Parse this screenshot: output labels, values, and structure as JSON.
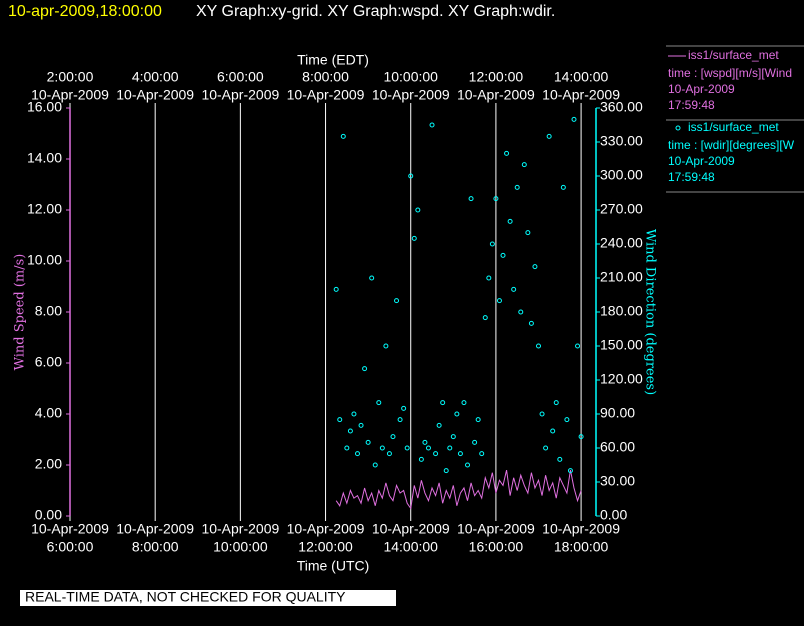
{
  "chart_data": {
    "type": "line",
    "timestamp": "10-apr-2009,18:00:00",
    "title": "XY Graph:xy-grid.  XY Graph:wspd.  XY Graph:wdir.",
    "xlabel": "Time (UTC)",
    "x2label": "Time (EDT)",
    "ylabel": "Wind Speed (m/s)",
    "y2label": "Wind Direction (degrees)",
    "note": "REAL-TIME DATA, NOT CHECKED FOR QUALITY",
    "grid": true,
    "xlim": [
      "06:00:00",
      "18:21:00"
    ],
    "xticks": [
      {
        "value": "06:00:00",
        "label": [
          "10-Apr-2009",
          "6:00:00"
        ]
      },
      {
        "value": "08:00:00",
        "label": [
          "10-Apr-2009",
          "8:00:00"
        ]
      },
      {
        "value": "10:00:00",
        "label": [
          "10-Apr-2009",
          "10:00:00"
        ]
      },
      {
        "value": "12:00:00",
        "label": [
          "10-Apr-2009",
          "12:00:00"
        ]
      },
      {
        "value": "14:00:00",
        "label": [
          "10-Apr-2009",
          "14:00:00"
        ]
      },
      {
        "value": "16:00:00",
        "label": [
          "10-Apr-2009",
          "16:00:00"
        ]
      },
      {
        "value": "18:00:00",
        "label": [
          "10-Apr-2009",
          "18:00:00"
        ]
      }
    ],
    "x2ticks": [
      {
        "value": "06:00:00",
        "label": [
          "2:00:00",
          "10-Apr-2009"
        ]
      },
      {
        "value": "08:00:00",
        "label": [
          "4:00:00",
          "10-Apr-2009"
        ]
      },
      {
        "value": "10:00:00",
        "label": [
          "6:00:00",
          "10-Apr-2009"
        ]
      },
      {
        "value": "12:00:00",
        "label": [
          "8:00:00",
          "10-Apr-2009"
        ]
      },
      {
        "value": "14:00:00",
        "label": [
          "10:00:00",
          "10-Apr-2009"
        ]
      },
      {
        "value": "16:00:00",
        "label": [
          "12:00:00",
          "10-Apr-2009"
        ]
      },
      {
        "value": "18:00:00",
        "label": [
          "14:00:00",
          "10-Apr-2009"
        ]
      }
    ],
    "ylim": [
      0,
      16
    ],
    "yticks": [
      {
        "value": 0,
        "label": "0.00"
      },
      {
        "value": 2,
        "label": "2.00"
      },
      {
        "value": 4,
        "label": "4.00"
      },
      {
        "value": 6,
        "label": "6.00"
      },
      {
        "value": 8,
        "label": "8.00"
      },
      {
        "value": 10,
        "label": "10.00"
      },
      {
        "value": 12,
        "label": "12.00"
      },
      {
        "value": 14,
        "label": "14.00"
      },
      {
        "value": 16,
        "label": "16.00"
      }
    ],
    "y2lim": [
      0,
      360
    ],
    "y2ticks": [
      {
        "value": 0,
        "label": "0.00"
      },
      {
        "value": 30,
        "label": "30.00"
      },
      {
        "value": 60,
        "label": "60.00"
      },
      {
        "value": 90,
        "label": "90.00"
      },
      {
        "value": 120,
        "label": "120.00"
      },
      {
        "value": 150,
        "label": "150.00"
      },
      {
        "value": 180,
        "label": "180.00"
      },
      {
        "value": 210,
        "label": "210.00"
      },
      {
        "value": 240,
        "label": "240.00"
      },
      {
        "value": 270,
        "label": "270.00"
      },
      {
        "value": 300,
        "label": "300.00"
      },
      {
        "value": 330,
        "label": "330.00"
      },
      {
        "value": 360,
        "label": "360.00"
      }
    ],
    "x": [
      "12:15:00",
      "12:20:00",
      "12:25:00",
      "12:30:00",
      "12:35:00",
      "12:40:00",
      "12:45:00",
      "12:50:00",
      "12:55:00",
      "13:00:00",
      "13:05:00",
      "13:10:00",
      "13:15:00",
      "13:20:00",
      "13:25:00",
      "13:30:00",
      "13:35:00",
      "13:40:00",
      "13:45:00",
      "13:50:00",
      "13:55:00",
      "14:00:00",
      "14:05:00",
      "14:10:00",
      "14:15:00",
      "14:20:00",
      "14:25:00",
      "14:30:00",
      "14:35:00",
      "14:40:00",
      "14:45:00",
      "14:50:00",
      "14:55:00",
      "15:00:00",
      "15:05:00",
      "15:10:00",
      "15:15:00",
      "15:20:00",
      "15:25:00",
      "15:30:00",
      "15:35:00",
      "15:40:00",
      "15:45:00",
      "15:50:00",
      "15:55:00",
      "16:00:00",
      "16:05:00",
      "16:10:00",
      "16:15:00",
      "16:20:00",
      "16:25:00",
      "16:30:00",
      "16:35:00",
      "16:40:00",
      "16:45:00",
      "16:50:00",
      "16:55:00",
      "17:00:00",
      "17:05:00",
      "17:10:00",
      "17:15:00",
      "17:20:00",
      "17:25:00",
      "17:30:00",
      "17:35:00",
      "17:40:00",
      "17:45:00",
      "17:50:00",
      "17:55:00",
      "18:00:00"
    ],
    "series": [
      {
        "name": "iss1/surface_met",
        "type": "line",
        "axis": "y",
        "color": "#e070e0",
        "legend_lines": [
          "time : [wspd][m/s][Wind",
          "10-Apr-2009",
          "17:59:48"
        ],
        "values": [
          0.6,
          0.4,
          0.9,
          0.5,
          1.0,
          0.7,
          0.8,
          0.5,
          1.1,
          0.6,
          0.9,
          0.4,
          1.0,
          0.7,
          1.3,
          0.8,
          0.6,
          1.2,
          0.9,
          1.0,
          0.5,
          0.3,
          1.2,
          0.7,
          1.4,
          0.9,
          0.6,
          1.1,
          0.8,
          1.3,
          0.5,
          1.0,
          0.7,
          1.2,
          0.4,
          0.9,
          1.1,
          0.6,
          1.3,
          0.8,
          1.0,
          0.7,
          1.5,
          1.1,
          1.7,
          0.9,
          1.4,
          1.2,
          1.8,
          0.8,
          1.5,
          1.0,
          1.6,
          1.2,
          0.9,
          1.7,
          1.1,
          1.4,
          0.8,
          1.6,
          1.0,
          1.3,
          0.7,
          1.5,
          1.2,
          0.9,
          1.8,
          1.1,
          0.6,
          1.0
        ]
      },
      {
        "name": "iss1/surface_met",
        "type": "scatter",
        "axis": "y2",
        "color": "#00ffff",
        "legend_lines": [
          "time : [wdir][degrees][W",
          "10-Apr-2009",
          "17:59:48"
        ],
        "values": [
          200,
          85,
          335,
          60,
          75,
          90,
          55,
          80,
          130,
          65,
          210,
          45,
          100,
          60,
          150,
          55,
          70,
          190,
          85,
          95,
          60,
          300,
          245,
          270,
          50,
          65,
          60,
          345,
          55,
          80,
          100,
          40,
          60,
          70,
          90,
          55,
          100,
          45,
          280,
          65,
          85,
          55,
          175,
          210,
          240,
          280,
          190,
          230,
          320,
          260,
          200,
          290,
          180,
          310,
          250,
          170,
          220,
          150,
          90,
          60,
          335,
          75,
          100,
          50,
          290,
          85,
          40,
          350,
          150,
          70
        ]
      }
    ]
  }
}
